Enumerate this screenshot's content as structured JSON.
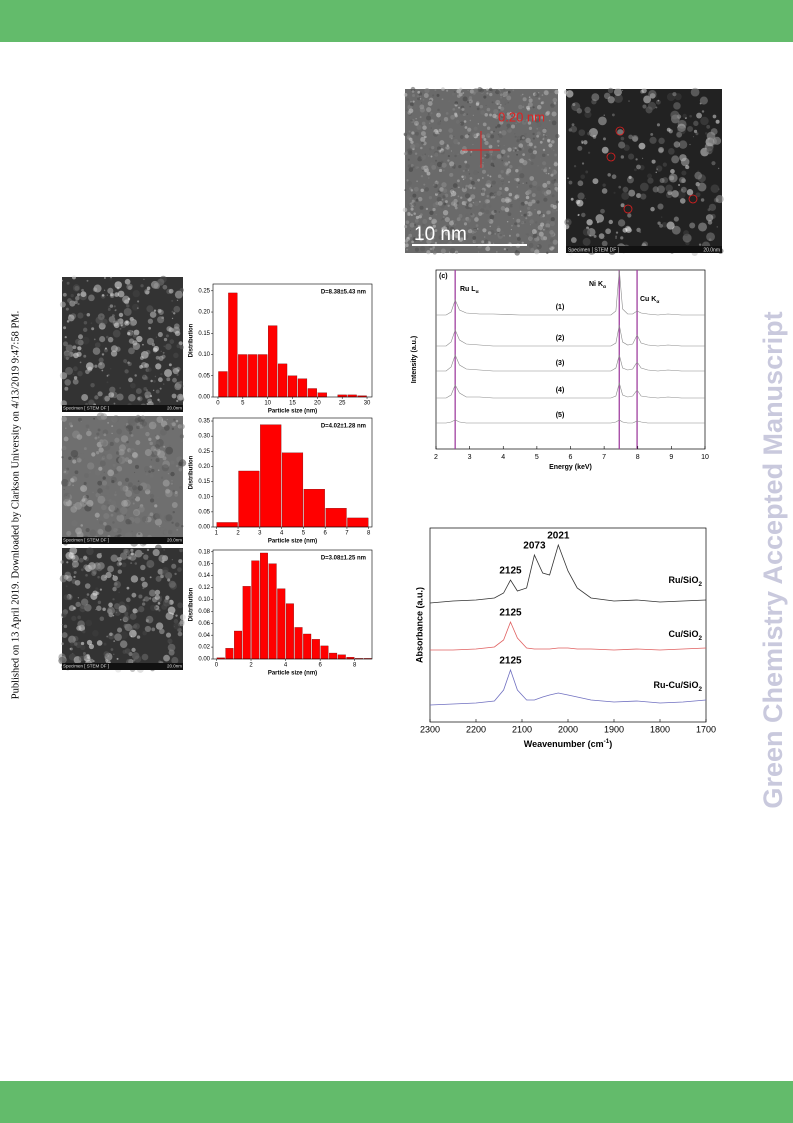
{
  "publication_note": "Published on 13 April 2019. Downloaded by Clarkson University on 4/13/2019 9:47:58 PM.",
  "watermark": "Green Chemistry Accepted Manuscript",
  "figures": {
    "hrtem": {
      "lattice": "0.20 nm",
      "scale": "10 nm"
    },
    "stem": {
      "caption": "Specimen [ STEM DF ]",
      "scale": "20.0nm"
    },
    "stem_series": [
      {
        "caption": "Specimen [ STEM DF ]",
        "scale": "20.0nm"
      },
      {
        "caption": "Specimen [ STEM DF ]",
        "scale": "20.0nm"
      },
      {
        "caption": "Specimen [ STEM DF ]",
        "scale": "20.0nm"
      }
    ]
  },
  "chart_data": [
    {
      "type": "histogram",
      "annotation": "D=8.38±5.43 nm",
      "xlabel": "Particle size (nm)",
      "ylabel": "Distribution",
      "color": "#ff0000",
      "bins": [
        0,
        2,
        4,
        6,
        8,
        10,
        12,
        14,
        16,
        18,
        20,
        22,
        24,
        26,
        28,
        30
      ],
      "values": [
        0.06,
        0.245,
        0.1,
        0.1,
        0.1,
        0.168,
        0.078,
        0.05,
        0.043,
        0.02,
        0.01,
        0,
        0.005,
        0.005,
        0.003
      ],
      "xlim": [
        -1,
        31
      ],
      "ylim": [
        0,
        0.266
      ],
      "xticks": [
        0,
        5,
        10,
        15,
        20,
        25,
        30
      ],
      "yticks": [
        {
          "value": 0,
          "label": "0.00"
        },
        {
          "value": 0.05,
          "label": "0.05"
        },
        {
          "value": 0.1,
          "label": "0.10"
        },
        {
          "value": 0.15,
          "label": "0.15"
        },
        {
          "value": 0.2,
          "label": "0.20"
        },
        {
          "value": 0.25,
          "label": "0.25"
        }
      ]
    },
    {
      "type": "histogram",
      "annotation": "D=4.02±1.28 nm",
      "xlabel": "Particle size (nm)",
      "ylabel": "Distribution",
      "color": "#ff0000",
      "bins": [
        1,
        2,
        3,
        4,
        5,
        6,
        7,
        8
      ],
      "values": [
        0.015,
        0.185,
        0.338,
        0.245,
        0.125,
        0.062,
        0.03
      ],
      "xlim": [
        0.85,
        8.15
      ],
      "ylim": [
        0,
        0.36
      ],
      "xticks": [
        1,
        2,
        3,
        4,
        5,
        6,
        7,
        8
      ],
      "yticks": [
        {
          "value": 0,
          "label": "0.00"
        },
        {
          "value": 0.05,
          "label": "0.05"
        },
        {
          "value": 0.1,
          "label": "0.10"
        },
        {
          "value": 0.15,
          "label": "0.15"
        },
        {
          "value": 0.2,
          "label": "0.20"
        },
        {
          "value": 0.25,
          "label": "0.25"
        },
        {
          "value": 0.3,
          "label": "0.30"
        },
        {
          "value": 0.35,
          "label": "0.35"
        }
      ]
    },
    {
      "type": "histogram",
      "annotation": "D=3.08±1.25 nm",
      "xlabel": "Particle size (nm)",
      "ylabel": "Distribution",
      "color": "#ff0000",
      "bins": [
        0,
        0.5,
        1,
        1.5,
        2,
        2.5,
        3,
        3.5,
        4,
        4.5,
        5,
        5.5,
        6,
        6.5,
        7,
        7.5,
        8,
        8.5,
        9
      ],
      "values": [
        0.002,
        0.018,
        0.047,
        0.122,
        0.165,
        0.178,
        0.16,
        0.118,
        0.093,
        0.053,
        0.042,
        0.033,
        0.022,
        0.01,
        0.007,
        0.003,
        0.001,
        0.001
      ],
      "xlim": [
        -0.2,
        9
      ],
      "ylim": [
        0,
        0.183
      ],
      "xticks": [
        0,
        2,
        4,
        6,
        8
      ],
      "yticks": [
        {
          "value": 0,
          "label": "0.00"
        },
        {
          "value": 0.02,
          "label": "0.02"
        },
        {
          "value": 0.04,
          "label": "0.04"
        },
        {
          "value": 0.06,
          "label": "0.06"
        },
        {
          "value": 0.08,
          "label": "0.08"
        },
        {
          "value": 0.1,
          "label": "0.10"
        },
        {
          "value": 0.12,
          "label": "0.12"
        },
        {
          "value": 0.14,
          "label": "0.14"
        },
        {
          "value": 0.16,
          "label": "0.16"
        },
        {
          "value": 0.18,
          "label": "0.18"
        }
      ]
    },
    {
      "type": "spectra",
      "subplot_label": "(c)",
      "xlabel": "Energy (keV)",
      "ylabel": "Intensity (a.u.)",
      "x": [
        2,
        2.3,
        2.45,
        2.57,
        2.7,
        2.9,
        3.3,
        3.7,
        4.5,
        5.5,
        6.5,
        7.2,
        7.35,
        7.45,
        7.55,
        7.7,
        7.85,
        7.98,
        8.1,
        8.3,
        8.6,
        8.9,
        9.3,
        10
      ],
      "series": [
        {
          "name": "(1)",
          "color": "#8a8a8a",
          "values": [
            0,
            0,
            3,
            15,
            5,
            2,
            1,
            1,
            0,
            0,
            0,
            0,
            4,
            45,
            6,
            1,
            1,
            4,
            2,
            1,
            0,
            1,
            0,
            0
          ]
        },
        {
          "name": "(2)",
          "color": "#8a8a8a",
          "values": [
            0,
            0,
            4,
            16,
            6,
            2,
            1,
            0,
            0,
            0,
            0,
            0,
            3,
            21,
            4,
            1,
            2,
            11,
            3,
            1,
            0,
            1,
            0,
            0
          ]
        },
        {
          "name": "(3)",
          "color": "#8a8a8a",
          "values": [
            0,
            0,
            4,
            16,
            6,
            2,
            1,
            0,
            0,
            0,
            0,
            0,
            3,
            16,
            3,
            1,
            2,
            9,
            3,
            1,
            0,
            1,
            0,
            0
          ]
        },
        {
          "name": "(4)",
          "color": "#8a8a8a",
          "values": [
            0,
            0,
            3,
            13,
            5,
            1,
            1,
            0,
            0,
            0,
            0,
            0,
            2,
            15,
            3,
            1,
            2,
            8,
            2,
            1,
            0,
            1,
            0,
            0
          ]
        },
        {
          "name": "(5)",
          "color": "#8a8a8a",
          "values": [
            0,
            0,
            1,
            3,
            1,
            0,
            0,
            0,
            0,
            0,
            0,
            0,
            1,
            3,
            1,
            0,
            0,
            2,
            1,
            0,
            0,
            0,
            0,
            0
          ]
        }
      ],
      "reference_lines": [
        {
          "x": 2.57,
          "label": {
            "text": "Ru L",
            "sub": "α"
          }
        },
        {
          "x": 7.45,
          "label": {
            "text": "Ni K",
            "sub": "α"
          }
        },
        {
          "x": 7.98,
          "label": {
            "text": "Cu K",
            "sub": "α"
          }
        }
      ],
      "reference_color": "#a040a0",
      "xlim": [
        2,
        10
      ],
      "xticks": [
        2,
        3,
        4,
        5,
        6,
        7,
        8,
        9,
        10
      ]
    },
    {
      "type": "spectra",
      "xlabel": {
        "text": "Weavenumber (cm",
        "sup": "-1",
        "tail": ")"
      },
      "ylabel": "Absorbance (a.u.)",
      "x": [
        2300,
        2250,
        2200,
        2160,
        2140,
        2125,
        2110,
        2090,
        2073,
        2055,
        2040,
        2021,
        2000,
        1980,
        1950,
        1900,
        1850,
        1800,
        1750,
        1700
      ],
      "series": [
        {
          "name": {
            "text": "Ru/SiO",
            "sub": "2"
          },
          "color": "#333333",
          "values": [
            0,
            2,
            3,
            5,
            10,
            23,
            12,
            15,
            48,
            30,
            28,
            58,
            32,
            15,
            5,
            2,
            3,
            1,
            2,
            3
          ],
          "peak_labels": [
            2125,
            2073,
            2021
          ]
        },
        {
          "name": {
            "text": "Cu/SiO",
            "sub": "2"
          },
          "color": "#e06060",
          "values": [
            0,
            0,
            1,
            3,
            10,
            28,
            12,
            2,
            1,
            1,
            1,
            2,
            2,
            1,
            1,
            0,
            1,
            0,
            1,
            2
          ],
          "peak_labels": [
            2125
          ]
        },
        {
          "name": {
            "text": "Ru-Cu/SiO",
            "sub": "2"
          },
          "color": "#7070c0",
          "values": [
            0,
            1,
            2,
            4,
            15,
            35,
            15,
            5,
            5,
            8,
            10,
            12,
            10,
            8,
            5,
            3,
            4,
            2,
            3,
            5
          ],
          "peak_labels": [
            2125
          ]
        }
      ],
      "xlim": [
        2300,
        1700
      ],
      "xticks": [
        2300,
        2200,
        2100,
        2000,
        1900,
        1800,
        1700
      ]
    }
  ]
}
